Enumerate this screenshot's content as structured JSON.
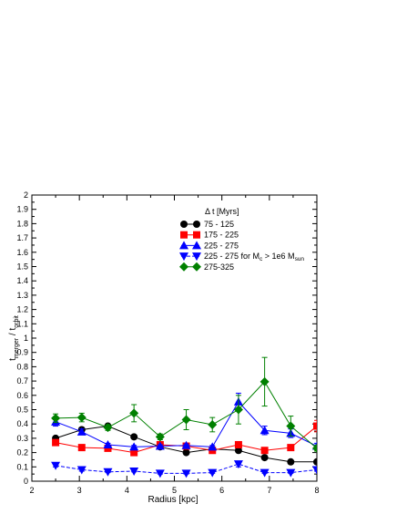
{
  "chart_data": {
    "type": "line",
    "xlabel": "Radius [kpc]",
    "ylabel": {
      "base": "t",
      "sub1": "merger",
      "mid": " / t",
      "sub2": "orbit"
    },
    "xlim": [
      2,
      8
    ],
    "ylim": [
      0,
      2
    ],
    "xticks": [
      2,
      3,
      4,
      5,
      6,
      7,
      8
    ],
    "yticks": [
      0,
      0.1,
      0.2,
      0.3,
      0.4,
      0.5,
      0.6,
      0.7,
      0.8,
      0.9,
      1,
      1.1,
      1.2,
      1.3,
      1.4,
      1.5,
      1.6,
      1.7,
      1.8,
      1.9,
      2
    ],
    "x": [
      2.5,
      3.05,
      3.6,
      4.15,
      4.7,
      5.25,
      5.8,
      6.35,
      6.9,
      7.45,
      8.0
    ],
    "legend_title": "Δ t [Myrs]",
    "legend_placement": "upper-middle",
    "series": [
      {
        "name": "75 - 125",
        "color": "#000000",
        "marker": "circle",
        "dash": false,
        "values": [
          0.3,
          0.36,
          0.385,
          0.31,
          0.24,
          0.2,
          0.225,
          0.215,
          0.165,
          0.135,
          0.135
        ],
        "errors": [
          0.01,
          0.01,
          0.01,
          0.01,
          0.01,
          0.01,
          0.01,
          0.01,
          0.01,
          0.01,
          0.01
        ]
      },
      {
        "name": "175 - 225",
        "color": "#ff0000",
        "marker": "square",
        "dash": false,
        "values": [
          0.27,
          0.235,
          0.23,
          0.2,
          0.255,
          0.245,
          0.215,
          0.255,
          0.215,
          0.235,
          0.385
        ],
        "errors": [
          0.01,
          0.01,
          0.01,
          0.01,
          0.01,
          0.01,
          0.01,
          0.01,
          0.01,
          0.01,
          0.04
        ]
      },
      {
        "name": "225 - 275",
        "color": "#0000ff",
        "marker": "triangle-up",
        "dash": false,
        "values": [
          0.415,
          0.345,
          0.255,
          0.24,
          0.245,
          0.25,
          0.24,
          0.555,
          0.355,
          0.335,
          0.245
        ],
        "errors": [
          0.03,
          0.02,
          0.01,
          0.01,
          0.01,
          0.01,
          0.01,
          0.06,
          0.03,
          0.03,
          0.02
        ]
      },
      {
        "name": "225 - 275 for M_c > 1e6 M_sun",
        "label_parts": {
          "a": "225 - 275 for M",
          "b": "c",
          "c": " > 1e6 M",
          "d": "sun"
        },
        "color": "#0000ff",
        "marker": "triangle-down",
        "dash": true,
        "values": [
          0.11,
          0.08,
          0.065,
          0.07,
          0.055,
          0.055,
          0.06,
          0.12,
          0.06,
          0.06,
          0.08
        ],
        "errors": [
          0.01,
          0.01,
          0.005,
          0.005,
          0.005,
          0.005,
          0.005,
          0.02,
          0.005,
          0.005,
          0.01
        ]
      },
      {
        "name": "275-325",
        "color": "#008000",
        "marker": "diamond",
        "dash": false,
        "values": [
          0.44,
          0.445,
          0.375,
          0.475,
          0.31,
          0.43,
          0.395,
          0.5,
          0.695,
          0.385,
          0.23
        ],
        "errors": [
          0.03,
          0.03,
          0.02,
          0.06,
          0.02,
          0.07,
          0.05,
          0.1,
          0.17,
          0.07,
          0.02
        ]
      }
    ]
  }
}
